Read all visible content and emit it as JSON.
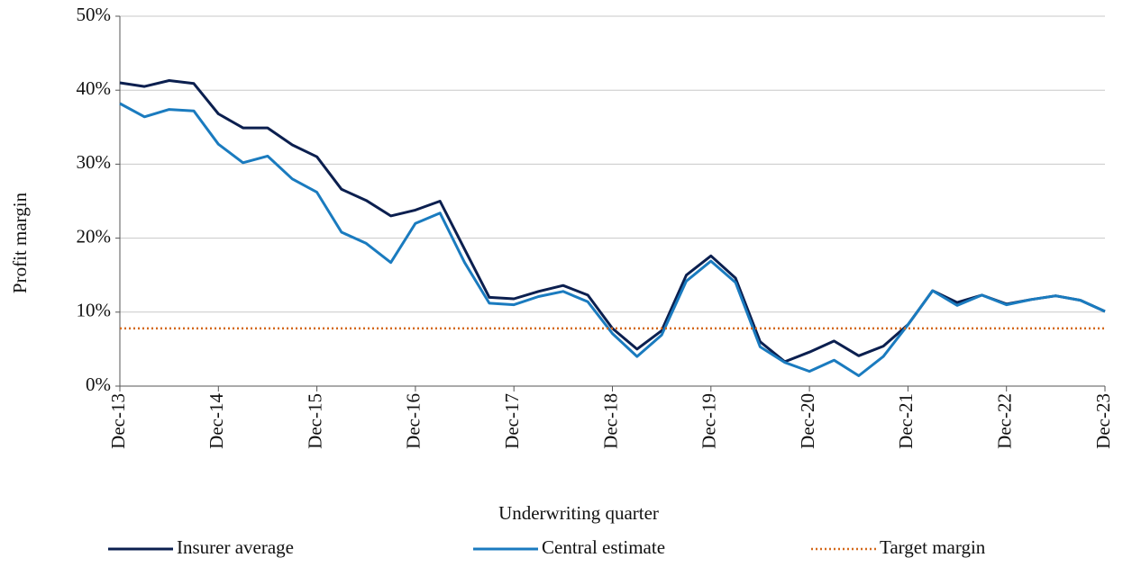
{
  "chart_data": {
    "type": "line",
    "x_label": "Underwriting quarter",
    "y_label": "Profit margin",
    "categories": [
      "Dec-13",
      null,
      null,
      null,
      "Dec-14",
      null,
      null,
      null,
      "Dec-15",
      null,
      null,
      null,
      "Dec-16",
      null,
      null,
      null,
      "Dec-17",
      null,
      null,
      null,
      "Dec-18",
      null,
      null,
      null,
      "Dec-19",
      null,
      null,
      null,
      "Dec-20",
      null,
      null,
      null,
      "Dec-21",
      null,
      null,
      null,
      "Dec-22",
      null,
      null,
      null,
      "Dec-23"
    ],
    "series": [
      {
        "name": "Insurer average",
        "color": "#0b1f4f",
        "style": "solid",
        "values": [
          41,
          40.5,
          41.3,
          40.9,
          36.8,
          34.9,
          34.9,
          32.6,
          31,
          26.6,
          25.1,
          23,
          23.8,
          25,
          18.5,
          12,
          11.8,
          12.8,
          13.6,
          12.3,
          7.8,
          5,
          7.5,
          15,
          17.6,
          14.6,
          6,
          3.3,
          4.6,
          6.1,
          4.1,
          5.4,
          8.3,
          12.9,
          11.3,
          12.3,
          11.1,
          11.7,
          12.2,
          11.6,
          10.1
        ]
      },
      {
        "name": "Central estimate",
        "color": "#1a7bbf",
        "style": "solid",
        "values": [
          38.2,
          36.4,
          37.4,
          37.2,
          32.7,
          30.2,
          31.1,
          28,
          26.2,
          20.8,
          19.3,
          16.7,
          22,
          23.4,
          16.7,
          11.2,
          11,
          12.1,
          12.8,
          11.4,
          7.1,
          4,
          6.9,
          14.2,
          16.9,
          14,
          5.3,
          3.2,
          2,
          3.5,
          1.4,
          4,
          8.3,
          12.9,
          10.9,
          12.3,
          11,
          11.7,
          12.2,
          11.6,
          10.1
        ]
      },
      {
        "name": "Target margin",
        "color": "#d4691b",
        "style": "dotted",
        "values": [
          7.8,
          7.8,
          7.8,
          7.8,
          7.8,
          7.8,
          7.8,
          7.8,
          7.8,
          7.8,
          7.8,
          7.8,
          7.8,
          7.8,
          7.8,
          7.8,
          7.8,
          7.8,
          7.8,
          7.8,
          7.8,
          7.8,
          7.8,
          7.8,
          7.8,
          7.8,
          7.8,
          7.8,
          7.8,
          7.8,
          7.8,
          7.8,
          7.8,
          7.8,
          7.8,
          7.8,
          7.8,
          7.8,
          7.8,
          7.8,
          7.8
        ]
      }
    ],
    "ylim": [
      0,
      50
    ],
    "yticks": [
      {
        "value": 0,
        "label": "0%"
      },
      {
        "value": 10,
        "label": "10%"
      },
      {
        "value": 20,
        "label": "20%"
      },
      {
        "value": 30,
        "label": "30%"
      },
      {
        "value": 40,
        "label": "40%"
      },
      {
        "value": 50,
        "label": "50%"
      }
    ],
    "grid": true
  }
}
